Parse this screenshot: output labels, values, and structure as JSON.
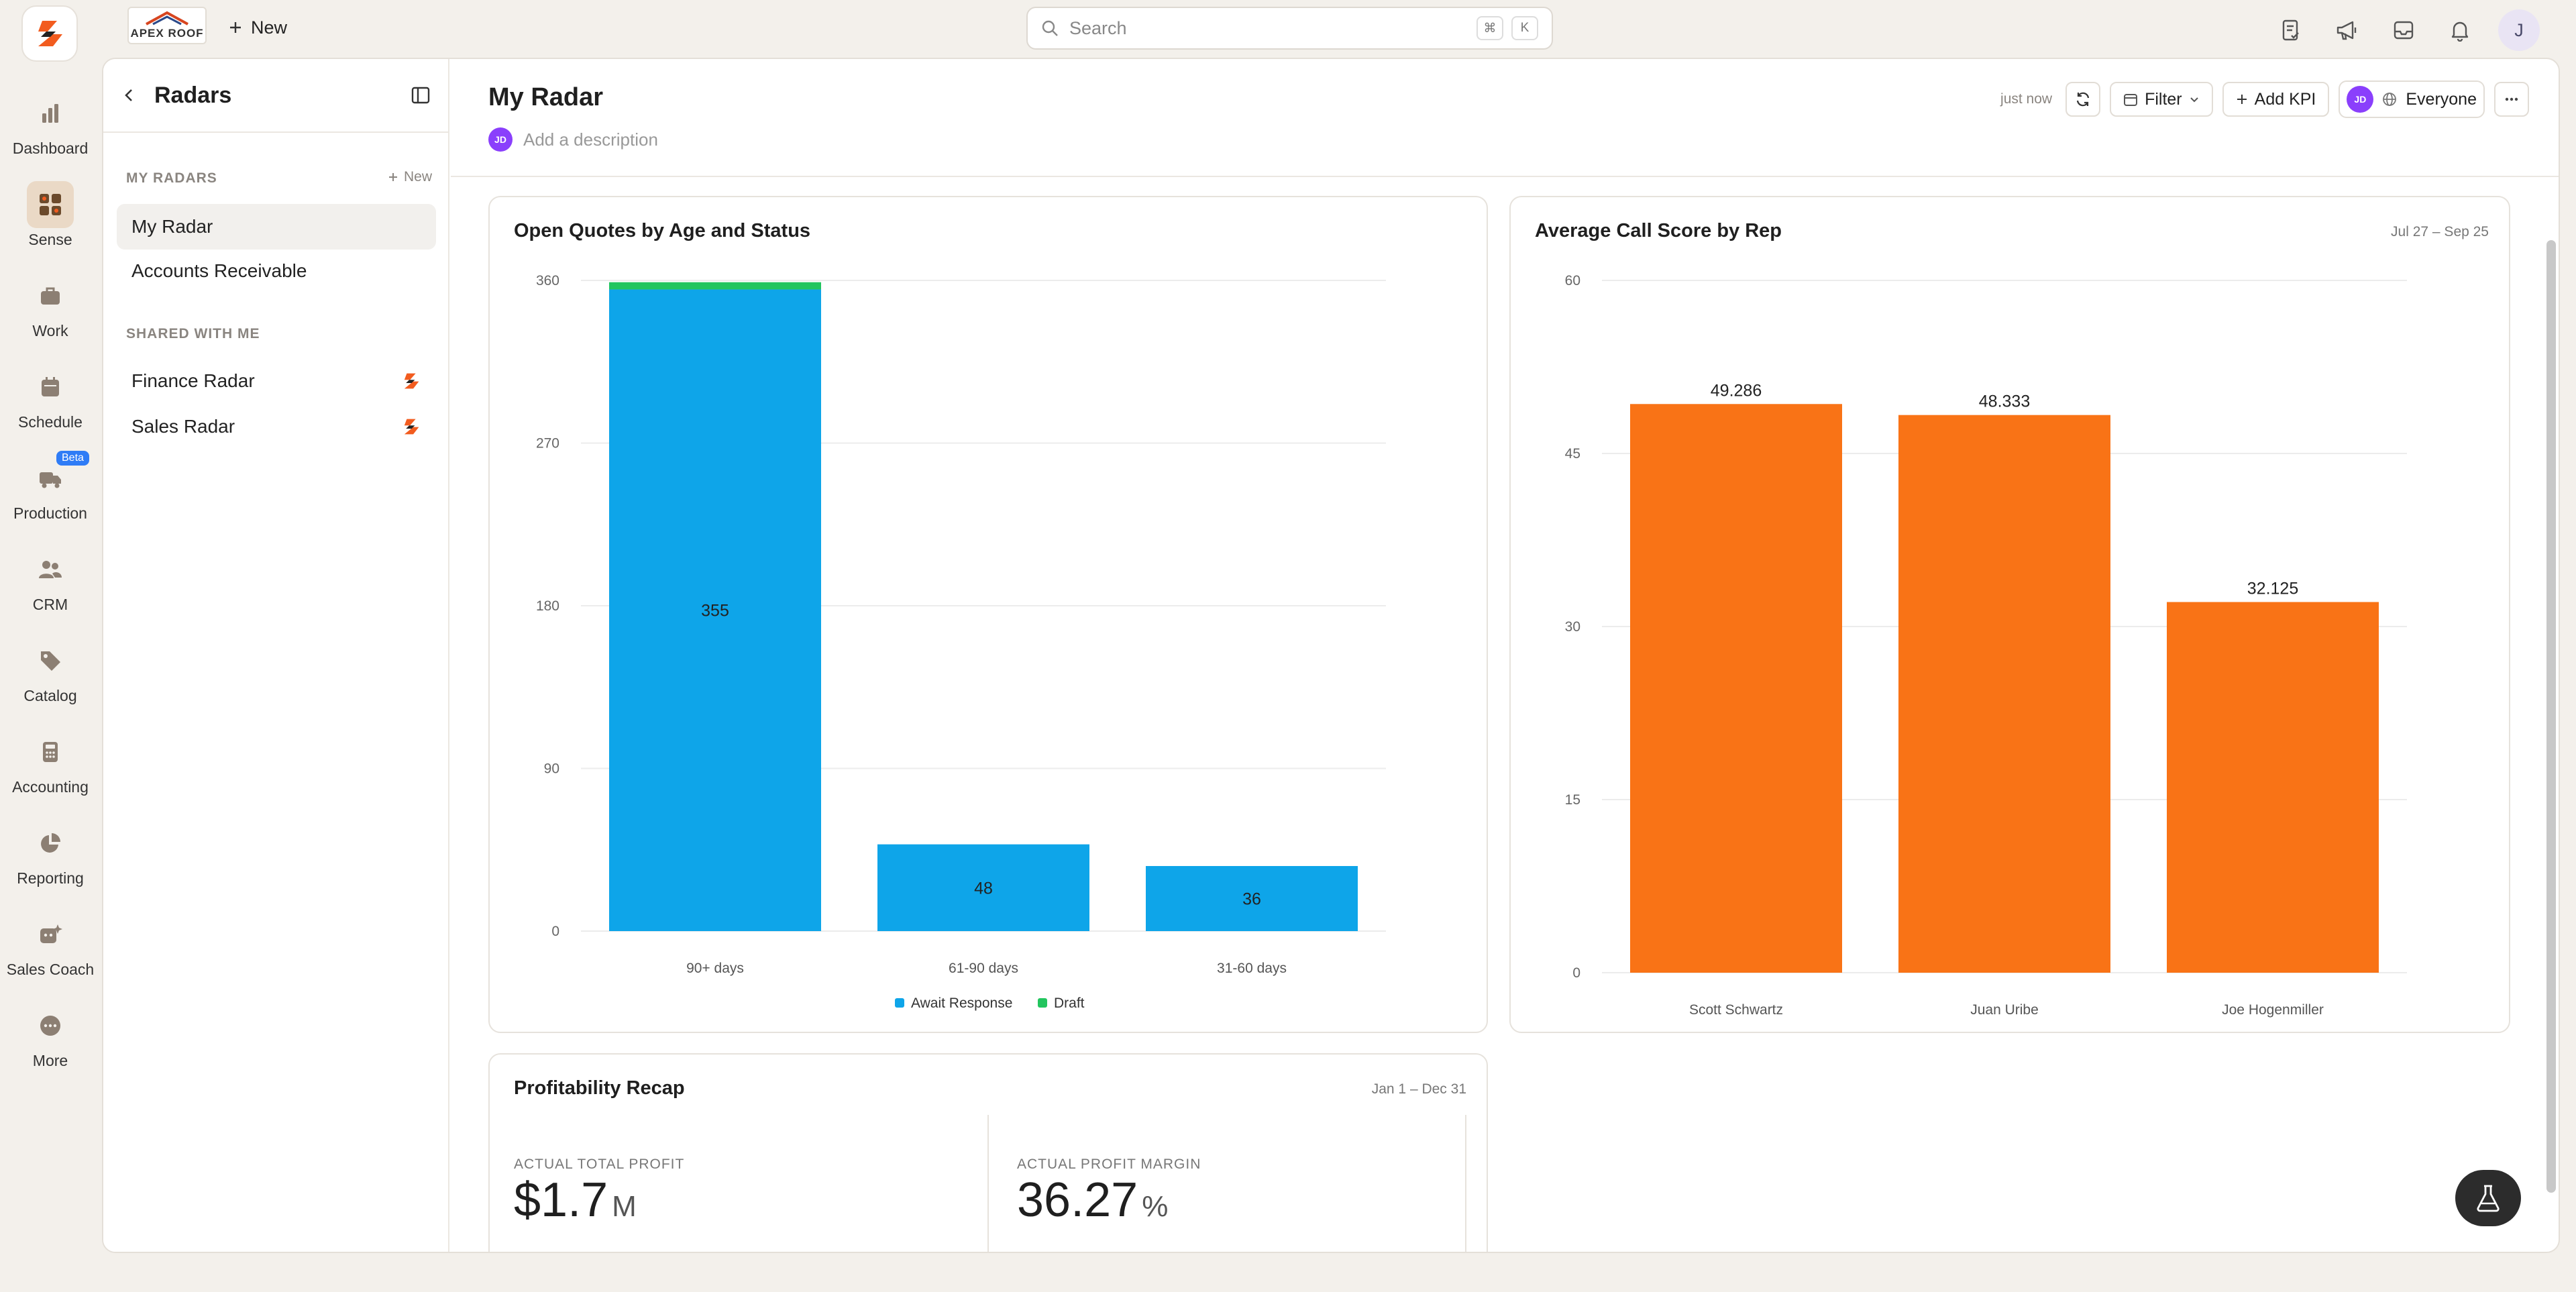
{
  "topbar": {
    "company_logo_text": "APEX ROOF",
    "new_label": "New",
    "search_placeholder": "Search",
    "kbd_cmd": "⌘",
    "kbd_k": "K",
    "user_initial": "J"
  },
  "rail": {
    "items": [
      {
        "label": "Dashboard",
        "icon": "bar-chart-icon"
      },
      {
        "label": "Sense",
        "icon": "grid-icon",
        "active": true
      },
      {
        "label": "Work",
        "icon": "briefcase-icon"
      },
      {
        "label": "Schedule",
        "icon": "calendar-icon"
      },
      {
        "label": "Production",
        "icon": "truck-icon",
        "badge": "Beta"
      },
      {
        "label": "CRM",
        "icon": "people-icon"
      },
      {
        "label": "Catalog",
        "icon": "tag-icon"
      },
      {
        "label": "Accounting",
        "icon": "calculator-icon"
      },
      {
        "label": "Reporting",
        "icon": "pie-icon"
      },
      {
        "label": "Sales Coach",
        "icon": "coach-icon"
      },
      {
        "label": "More",
        "icon": "more-icon"
      }
    ]
  },
  "panel": {
    "title": "Radars",
    "my_radars_label": "MY RADARS",
    "new_label": "New",
    "my_radars": [
      "My Radar",
      "Accounts Receivable"
    ],
    "shared_label": "SHARED WITH ME",
    "shared": [
      "Finance Radar",
      "Sales Radar"
    ]
  },
  "page": {
    "title": "My Radar",
    "avatar": "JD",
    "description_placeholder": "Add a description",
    "updated": "just now",
    "filter_label": "Filter",
    "add_kpi_label": "Add KPI",
    "visibility_label": "Everyone"
  },
  "cards": {
    "quotes": {
      "title": "Open Quotes by Age and Status"
    },
    "calls": {
      "title": "Average Call Score by Rep",
      "range": "Jul 27 – Sep 25"
    },
    "profit": {
      "title": "Profitability Recap",
      "range": "Jan 1 – Dec 31",
      "kpis": [
        {
          "label": "ACTUAL TOTAL PROFIT",
          "value": "$1.7",
          "unit": "M"
        },
        {
          "label": "ACTUAL PROFIT MARGIN",
          "value": "36.27",
          "unit": "%"
        }
      ]
    }
  },
  "chart_data": [
    {
      "type": "bar",
      "title": "Open Quotes by Age and Status",
      "stacked": true,
      "categories": [
        "90+ days",
        "61-90 days",
        "31-60 days"
      ],
      "series": [
        {
          "name": "Await Response",
          "values": [
            355,
            48,
            36
          ],
          "color": "#0ea5e9"
        },
        {
          "name": "Draft",
          "values": [
            4,
            0,
            0
          ],
          "color": "#22c55e"
        }
      ],
      "data_labels": [
        "355",
        "48",
        "36"
      ],
      "ylim": [
        0,
        360
      ],
      "yticks": [
        0,
        90,
        180,
        270,
        360
      ],
      "grid": true,
      "legend": "bottom-center"
    },
    {
      "type": "bar",
      "title": "Average Call Score by Rep",
      "categories": [
        "Scott Schwartz",
        "Juan Uribe",
        "Joe Hogenmiller"
      ],
      "values": [
        49.286,
        48.333,
        32.125
      ],
      "data_labels": [
        "49.286",
        "48.333",
        "32.125"
      ],
      "color": "#f97316",
      "ylim": [
        0,
        60
      ],
      "yticks": [
        0,
        15,
        30,
        45,
        60
      ],
      "grid": true
    }
  ]
}
